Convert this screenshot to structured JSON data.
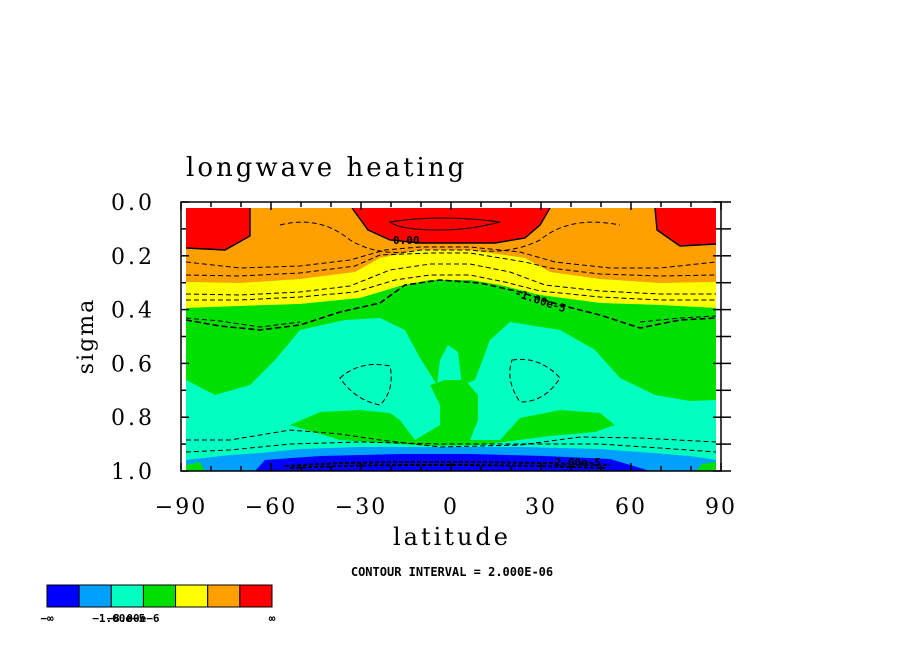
{
  "chart_data": {
    "type": "heatmap",
    "title": "longwave heating",
    "xlabel": "latitude",
    "ylabel": "sigma",
    "xlim": [
      -90,
      90
    ],
    "ylim": [
      0.0,
      1.0
    ],
    "x_ticks": [
      "−90",
      "−60",
      "−30",
      "0",
      "30",
      "60",
      "90"
    ],
    "y_ticks": [
      "0.0",
      "0.2",
      "0.4",
      "0.6",
      "0.8",
      "1.0"
    ],
    "contour_interval": "CONTOUR INTERVAL = 2.000E-06",
    "contour_labels": [
      "0.00",
      "-1.00e-5",
      "-2.00e-5"
    ],
    "colorbar": {
      "colors": [
        "#0000ff",
        "#00a0ff",
        "#00ffc0",
        "#00e000",
        "#ffff00",
        "#ffa000",
        "#ff0000"
      ],
      "tick_labels": [
        "−∞",
        "−1.60e−5",
        "−8.00e−6",
        "∞"
      ]
    },
    "regions": [
      {
        "level": 6,
        "color": "#ff0000",
        "desc": "polar caps top and upper tropics",
        "value_range": [
          0,
          null
        ]
      },
      {
        "level": 5,
        "color": "#ffa000",
        "desc": "upper extratropics",
        "value_range": [
          -4e-06,
          0
        ]
      },
      {
        "level": 4,
        "color": "#ffff00",
        "desc": "band near sigma 0.3",
        "value_range": [
          -8e-06,
          -4e-06
        ]
      },
      {
        "level": 3,
        "color": "#00e000",
        "desc": "middle troposphere",
        "value_range": [
          -1.2e-05,
          -8e-06
        ]
      },
      {
        "level": 2,
        "color": "#00ffc0",
        "desc": "lower troposphere",
        "value_range": [
          -1.6e-05,
          -1.2e-05
        ]
      },
      {
        "level": 1,
        "color": "#00a0ff",
        "desc": "near-surface tropics",
        "value_range": [
          -2e-05,
          -1.6e-05
        ]
      },
      {
        "level": 0,
        "color": "#0000ff",
        "desc": "surface minimum",
        "value_range": [
          null,
          -2e-05
        ]
      }
    ]
  }
}
